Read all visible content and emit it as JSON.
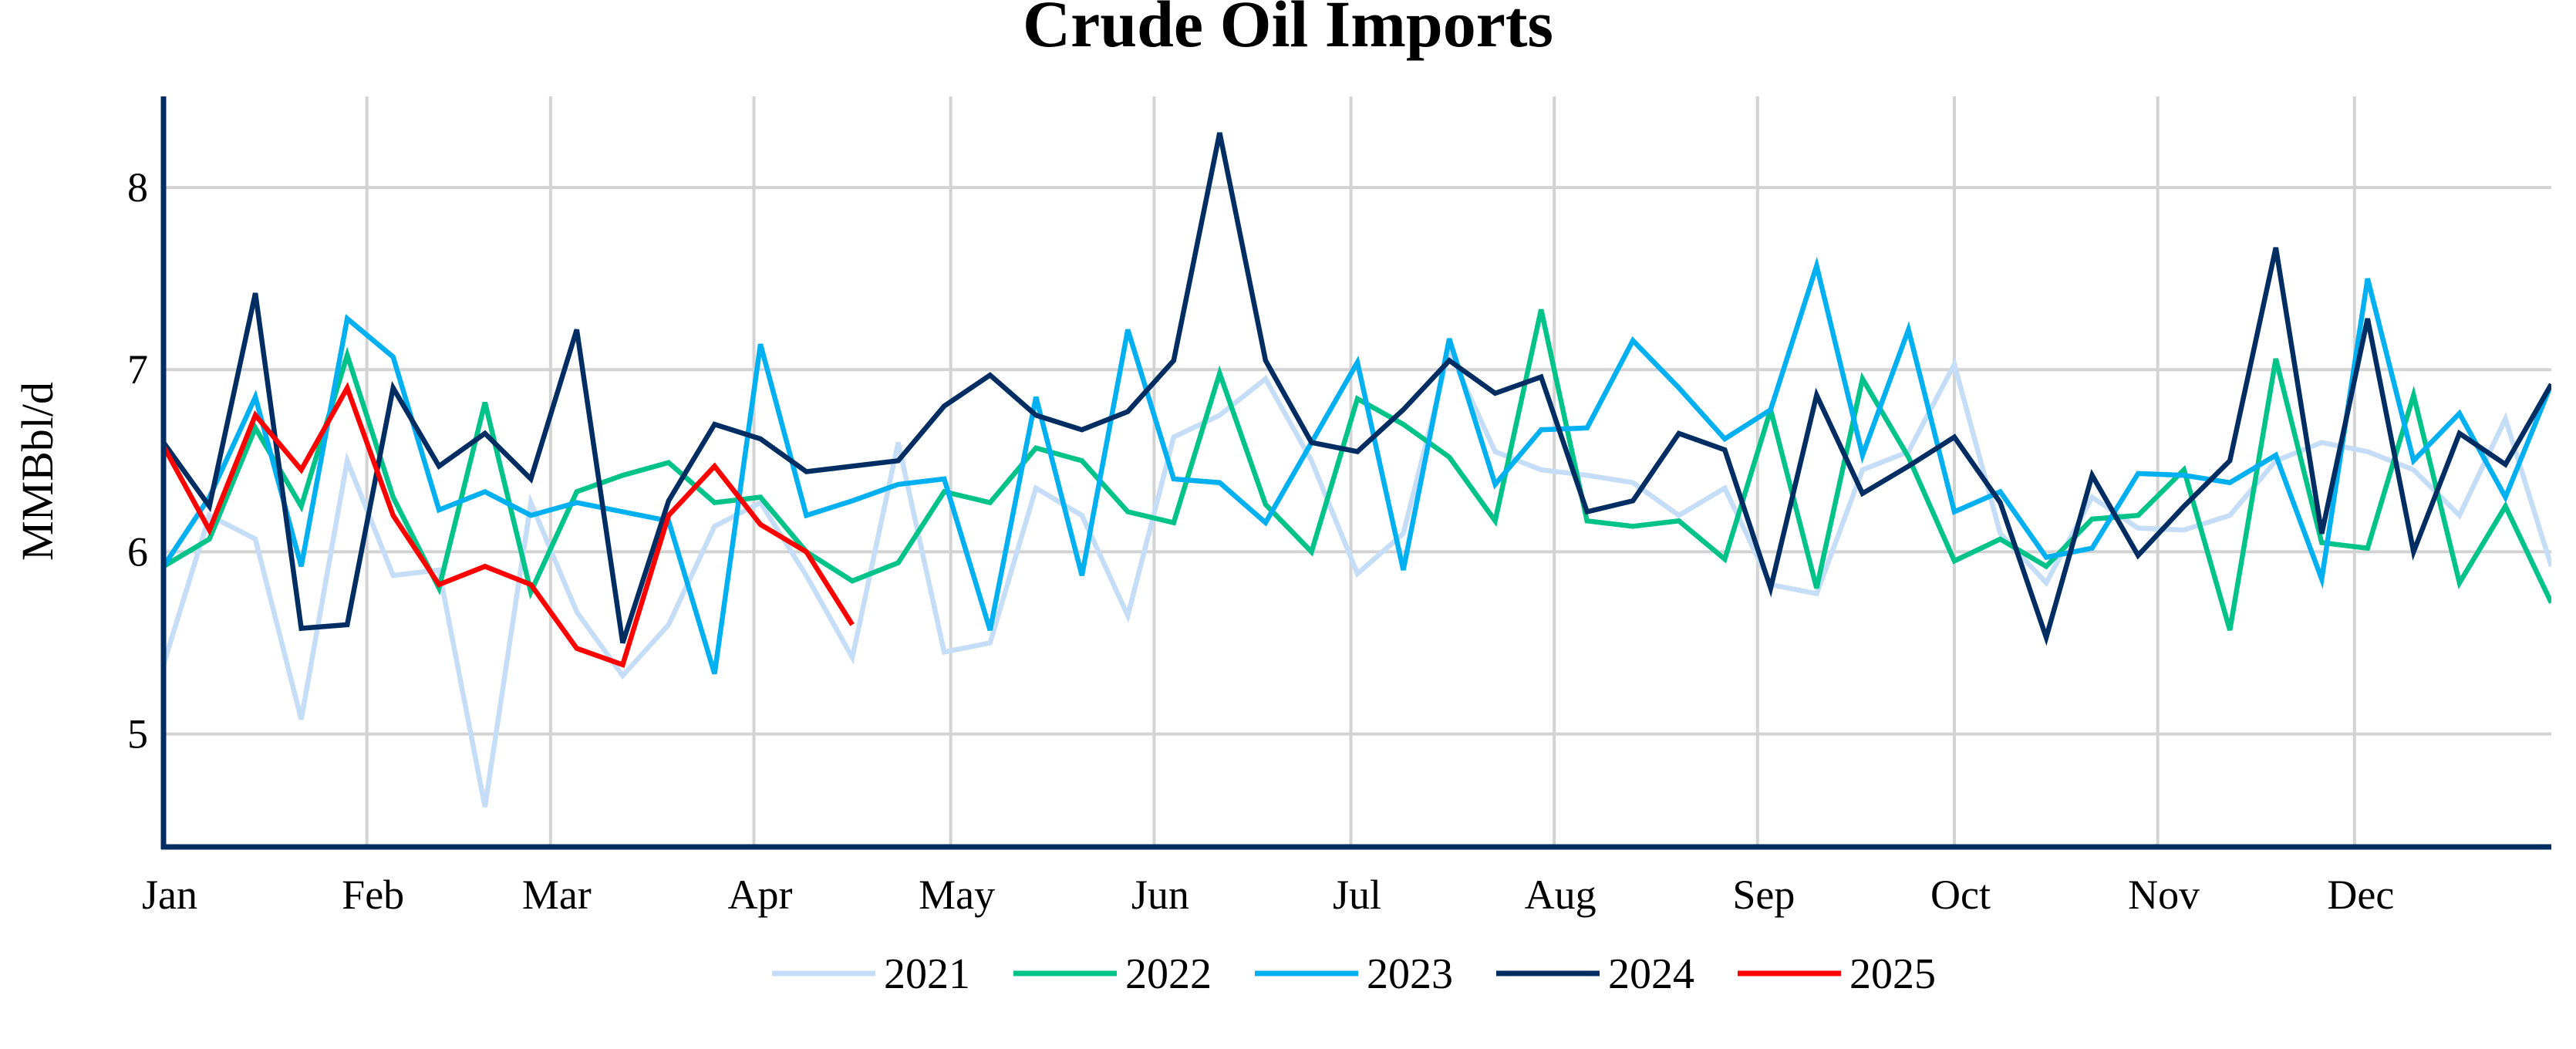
{
  "chart_data": {
    "type": "line",
    "title": "Crude Oil Imports",
    "xlabel": "",
    "ylabel": "MMBbl/d",
    "x_unit": "week of year (weekly points, Jan 1 to Dec 31)",
    "x_ticks": [
      "Jan",
      "Feb",
      "Mar",
      "Apr",
      "May",
      "Jun",
      "Jul",
      "Aug",
      "Sep",
      "Oct",
      "Nov",
      "Dec"
    ],
    "x_tick_days": [
      0,
      31,
      59,
      90,
      120,
      151,
      181,
      212,
      243,
      273,
      304,
      334
    ],
    "xlim_days": [
      0,
      364
    ],
    "y_ticks": [
      5,
      6,
      7,
      8
    ],
    "ylim": [
      4.38,
      8.5
    ],
    "grid": true,
    "legend_placement": "bottom",
    "axis_color": "#002D62",
    "series": [
      {
        "name": "2021",
        "color": "#C5DDF7",
        "values": [
          5.38,
          6.2,
          6.07,
          5.08,
          6.5,
          5.87,
          5.9,
          4.6,
          6.27,
          5.67,
          5.32,
          5.6,
          6.14,
          6.27,
          5.87,
          5.42,
          6.6,
          5.45,
          5.5,
          6.35,
          6.2,
          5.65,
          6.63,
          6.75,
          6.95,
          6.5,
          5.88,
          6.1,
          7.1,
          6.55,
          6.45,
          6.42,
          6.38,
          6.2,
          6.35,
          5.82,
          5.77,
          6.45,
          6.55,
          7.03,
          6.1,
          5.83,
          6.3,
          6.13,
          6.12,
          6.2,
          6.5,
          6.6,
          6.55,
          6.45,
          6.2,
          6.73,
          5.92
        ]
      },
      {
        "name": "2022",
        "color": "#00C389",
        "values": [
          5.92,
          6.07,
          6.68,
          6.25,
          7.08,
          6.3,
          5.8,
          6.82,
          5.78,
          6.33,
          6.42,
          6.49,
          6.27,
          6.3,
          6.0,
          5.84,
          5.94,
          6.33,
          6.27,
          6.57,
          6.5,
          6.22,
          6.16,
          6.98,
          6.26,
          6.0,
          6.84,
          6.7,
          6.52,
          6.17,
          7.33,
          6.17,
          6.14,
          6.17,
          5.96,
          6.78,
          5.8,
          6.95,
          6.52,
          5.95,
          6.07,
          5.92,
          6.18,
          6.2,
          6.45,
          5.57,
          7.06,
          6.05,
          6.02,
          6.86,
          5.83,
          6.25,
          5.72
        ]
      },
      {
        "name": "2023",
        "color": "#00B0F0",
        "values": [
          5.92,
          6.3,
          6.85,
          5.92,
          7.28,
          7.07,
          6.23,
          6.33,
          6.2,
          6.27,
          6.22,
          6.17,
          5.33,
          7.14,
          6.2,
          6.28,
          6.37,
          6.4,
          5.57,
          6.85,
          5.87,
          7.22,
          6.4,
          6.38,
          6.16,
          6.6,
          7.04,
          5.9,
          7.17,
          6.37,
          6.67,
          6.68,
          7.16,
          6.9,
          6.62,
          6.78,
          7.57,
          6.53,
          7.22,
          6.22,
          6.33,
          5.97,
          6.02,
          6.43,
          6.42,
          6.38,
          6.53,
          5.85,
          7.5,
          6.5,
          6.76,
          6.3,
          6.92
        ]
      },
      {
        "name": "2024",
        "color": "#002D62",
        "values": [
          6.6,
          6.25,
          7.42,
          5.58,
          5.6,
          6.9,
          6.47,
          6.65,
          6.4,
          7.22,
          5.5,
          6.28,
          6.7,
          6.62,
          6.44,
          6.47,
          6.5,
          6.8,
          6.97,
          6.75,
          6.67,
          6.77,
          7.05,
          8.3,
          7.05,
          6.6,
          6.55,
          6.78,
          7.05,
          6.87,
          6.96,
          6.22,
          6.28,
          6.65,
          6.56,
          5.8,
          6.86,
          6.32,
          6.47,
          6.63,
          6.27,
          5.53,
          6.42,
          5.98,
          6.25,
          6.5,
          7.67,
          6.1,
          7.28,
          6.0,
          6.65,
          6.48,
          6.92
        ]
      },
      {
        "name": "2025",
        "color": "#FF0000",
        "values": [
          6.58,
          6.12,
          6.75,
          6.45,
          6.9,
          6.2,
          5.82,
          5.92,
          5.82,
          5.47,
          5.38,
          6.2,
          6.47,
          6.15,
          6.0,
          5.6
        ]
      }
    ]
  }
}
